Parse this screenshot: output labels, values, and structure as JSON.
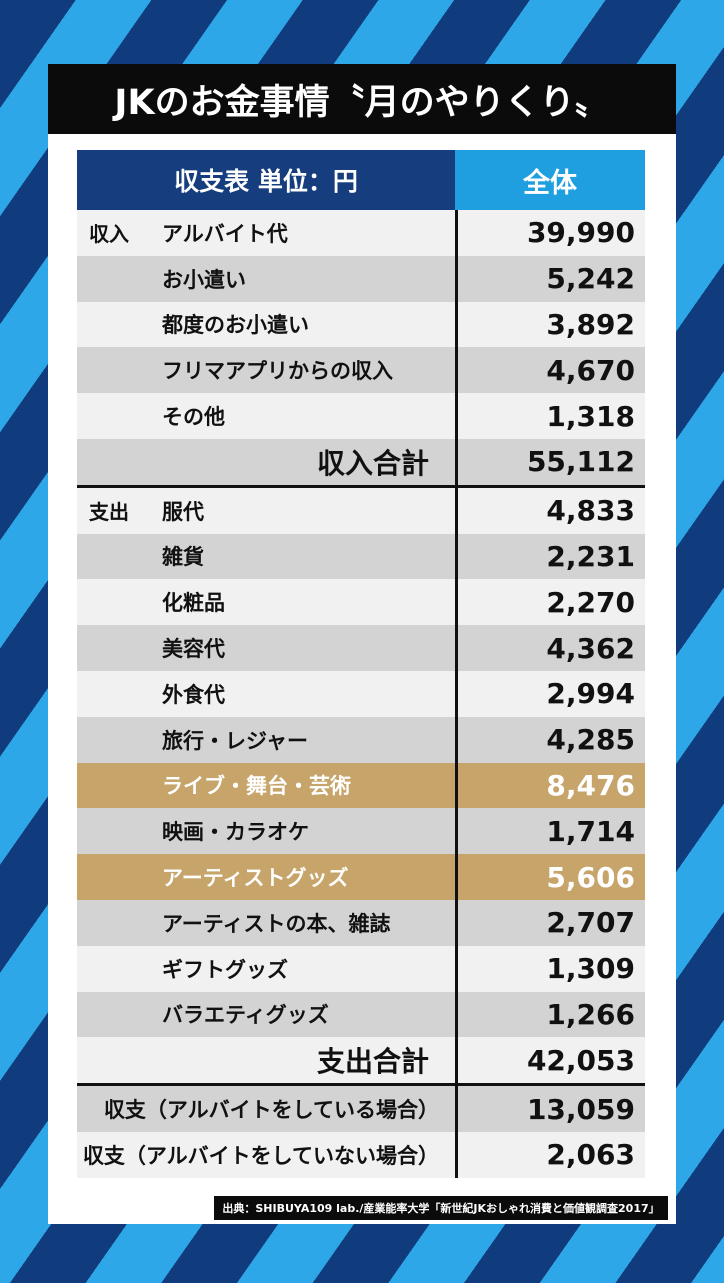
{
  "title": "JKのお金事情〝月のやりくり〟",
  "table": {
    "header_left": "収支表 単位：円",
    "header_right": "全体",
    "income": {
      "category": "収入",
      "items": [
        {
          "label": "アルバイト代",
          "value": "39,990"
        },
        {
          "label": "お小遣い",
          "value": "5,242"
        },
        {
          "label": "都度のお小遣い",
          "value": "3,892"
        },
        {
          "label": "フリマアプリからの収入",
          "value": "4,670"
        },
        {
          "label": "その他",
          "value": "1,318"
        }
      ],
      "total_label": "収入合計",
      "total_value": "55,112"
    },
    "expense": {
      "category": "支出",
      "items": [
        {
          "label": "服代",
          "value": "4,833"
        },
        {
          "label": "雑貨",
          "value": "2,231"
        },
        {
          "label": "化粧品",
          "value": "2,270"
        },
        {
          "label": "美容代",
          "value": "4,362"
        },
        {
          "label": "外食代",
          "value": "2,994"
        },
        {
          "label": "旅行・レジャー",
          "value": "4,285"
        },
        {
          "label": "ライブ・舞台・芸術",
          "value": "8,476"
        },
        {
          "label": "映画・カラオケ",
          "value": "1,714"
        },
        {
          "label": "アーティストグッズ",
          "value": "5,606"
        },
        {
          "label": "アーティストの本、雑誌",
          "value": "2,707"
        },
        {
          "label": "ギフトグッズ",
          "value": "1,309"
        },
        {
          "label": "バラエティグッズ",
          "value": "1,266"
        }
      ],
      "total_label": "支出合計",
      "total_value": "42,053"
    },
    "balance": [
      {
        "label": "収支（アルバイトをしている場合）",
        "value": "13,059"
      },
      {
        "label": "収支（アルバイトをしていない場合）",
        "value": "2,063"
      }
    ]
  },
  "source": "出典：SHIBUYA109 lab./産業能率大学「新世紀JKおしゃれ消費と価値観調査2017」",
  "colors": {
    "header_navy": "#163d7d",
    "header_blue": "#1f9fe0",
    "highlight_gold": "#c6a46a",
    "stripe_navy": "#103c7e",
    "stripe_blue": "#2ea7e8"
  }
}
